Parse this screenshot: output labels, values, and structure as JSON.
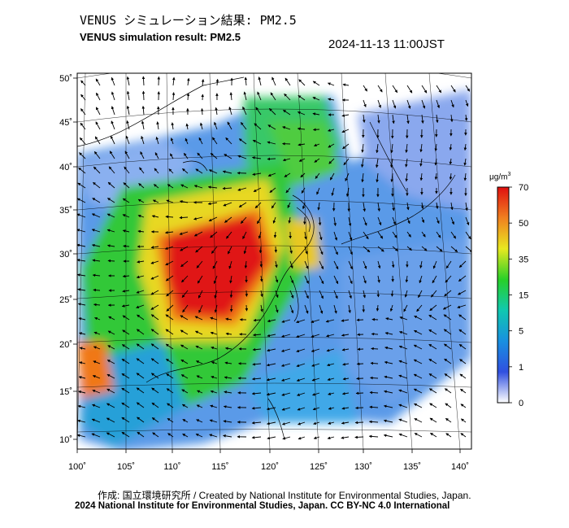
{
  "title_ja": "VENUS シミュレーション結果: PM2.5",
  "title_en": "VENUS simulation result: PM2.5",
  "timestamp": "2024-11-13 11:00JST",
  "credit_line1": "作成: 国立環境研究所 / Created by National Institute for Environmental Studies, Japan.",
  "credit_line2": "2024 National Institute for Environmental Studies, Japan. CC BY-NC 4.0 International",
  "map": {
    "lon_range": [
      100,
      142
    ],
    "lat_range": [
      9,
      51
    ],
    "lon_ticks": [
      "100˚",
      "105˚",
      "110˚",
      "115˚",
      "120˚",
      "125˚",
      "130˚",
      "135˚",
      "140˚"
    ],
    "lat_ticks": [
      "10˚",
      "15˚",
      "20˚",
      "25˚",
      "30˚",
      "35˚",
      "40˚",
      "45˚",
      "50˚"
    ]
  },
  "colorbar": {
    "unit": "μg/m",
    "unit_sup": "3",
    "levels": [
      "0",
      "1",
      "5",
      "15",
      "35",
      "50",
      "70"
    ],
    "colors": [
      "#ffffff",
      "#3050e0",
      "#1890e0",
      "#10c8b0",
      "#28d028",
      "#e8e820",
      "#f08020",
      "#e01010"
    ]
  },
  "colors": {
    "low": "#7aa0ee",
    "mid": "#30b8e0",
    "green": "#30d040",
    "yellow": "#e8e030",
    "high": "#e01818"
  }
}
